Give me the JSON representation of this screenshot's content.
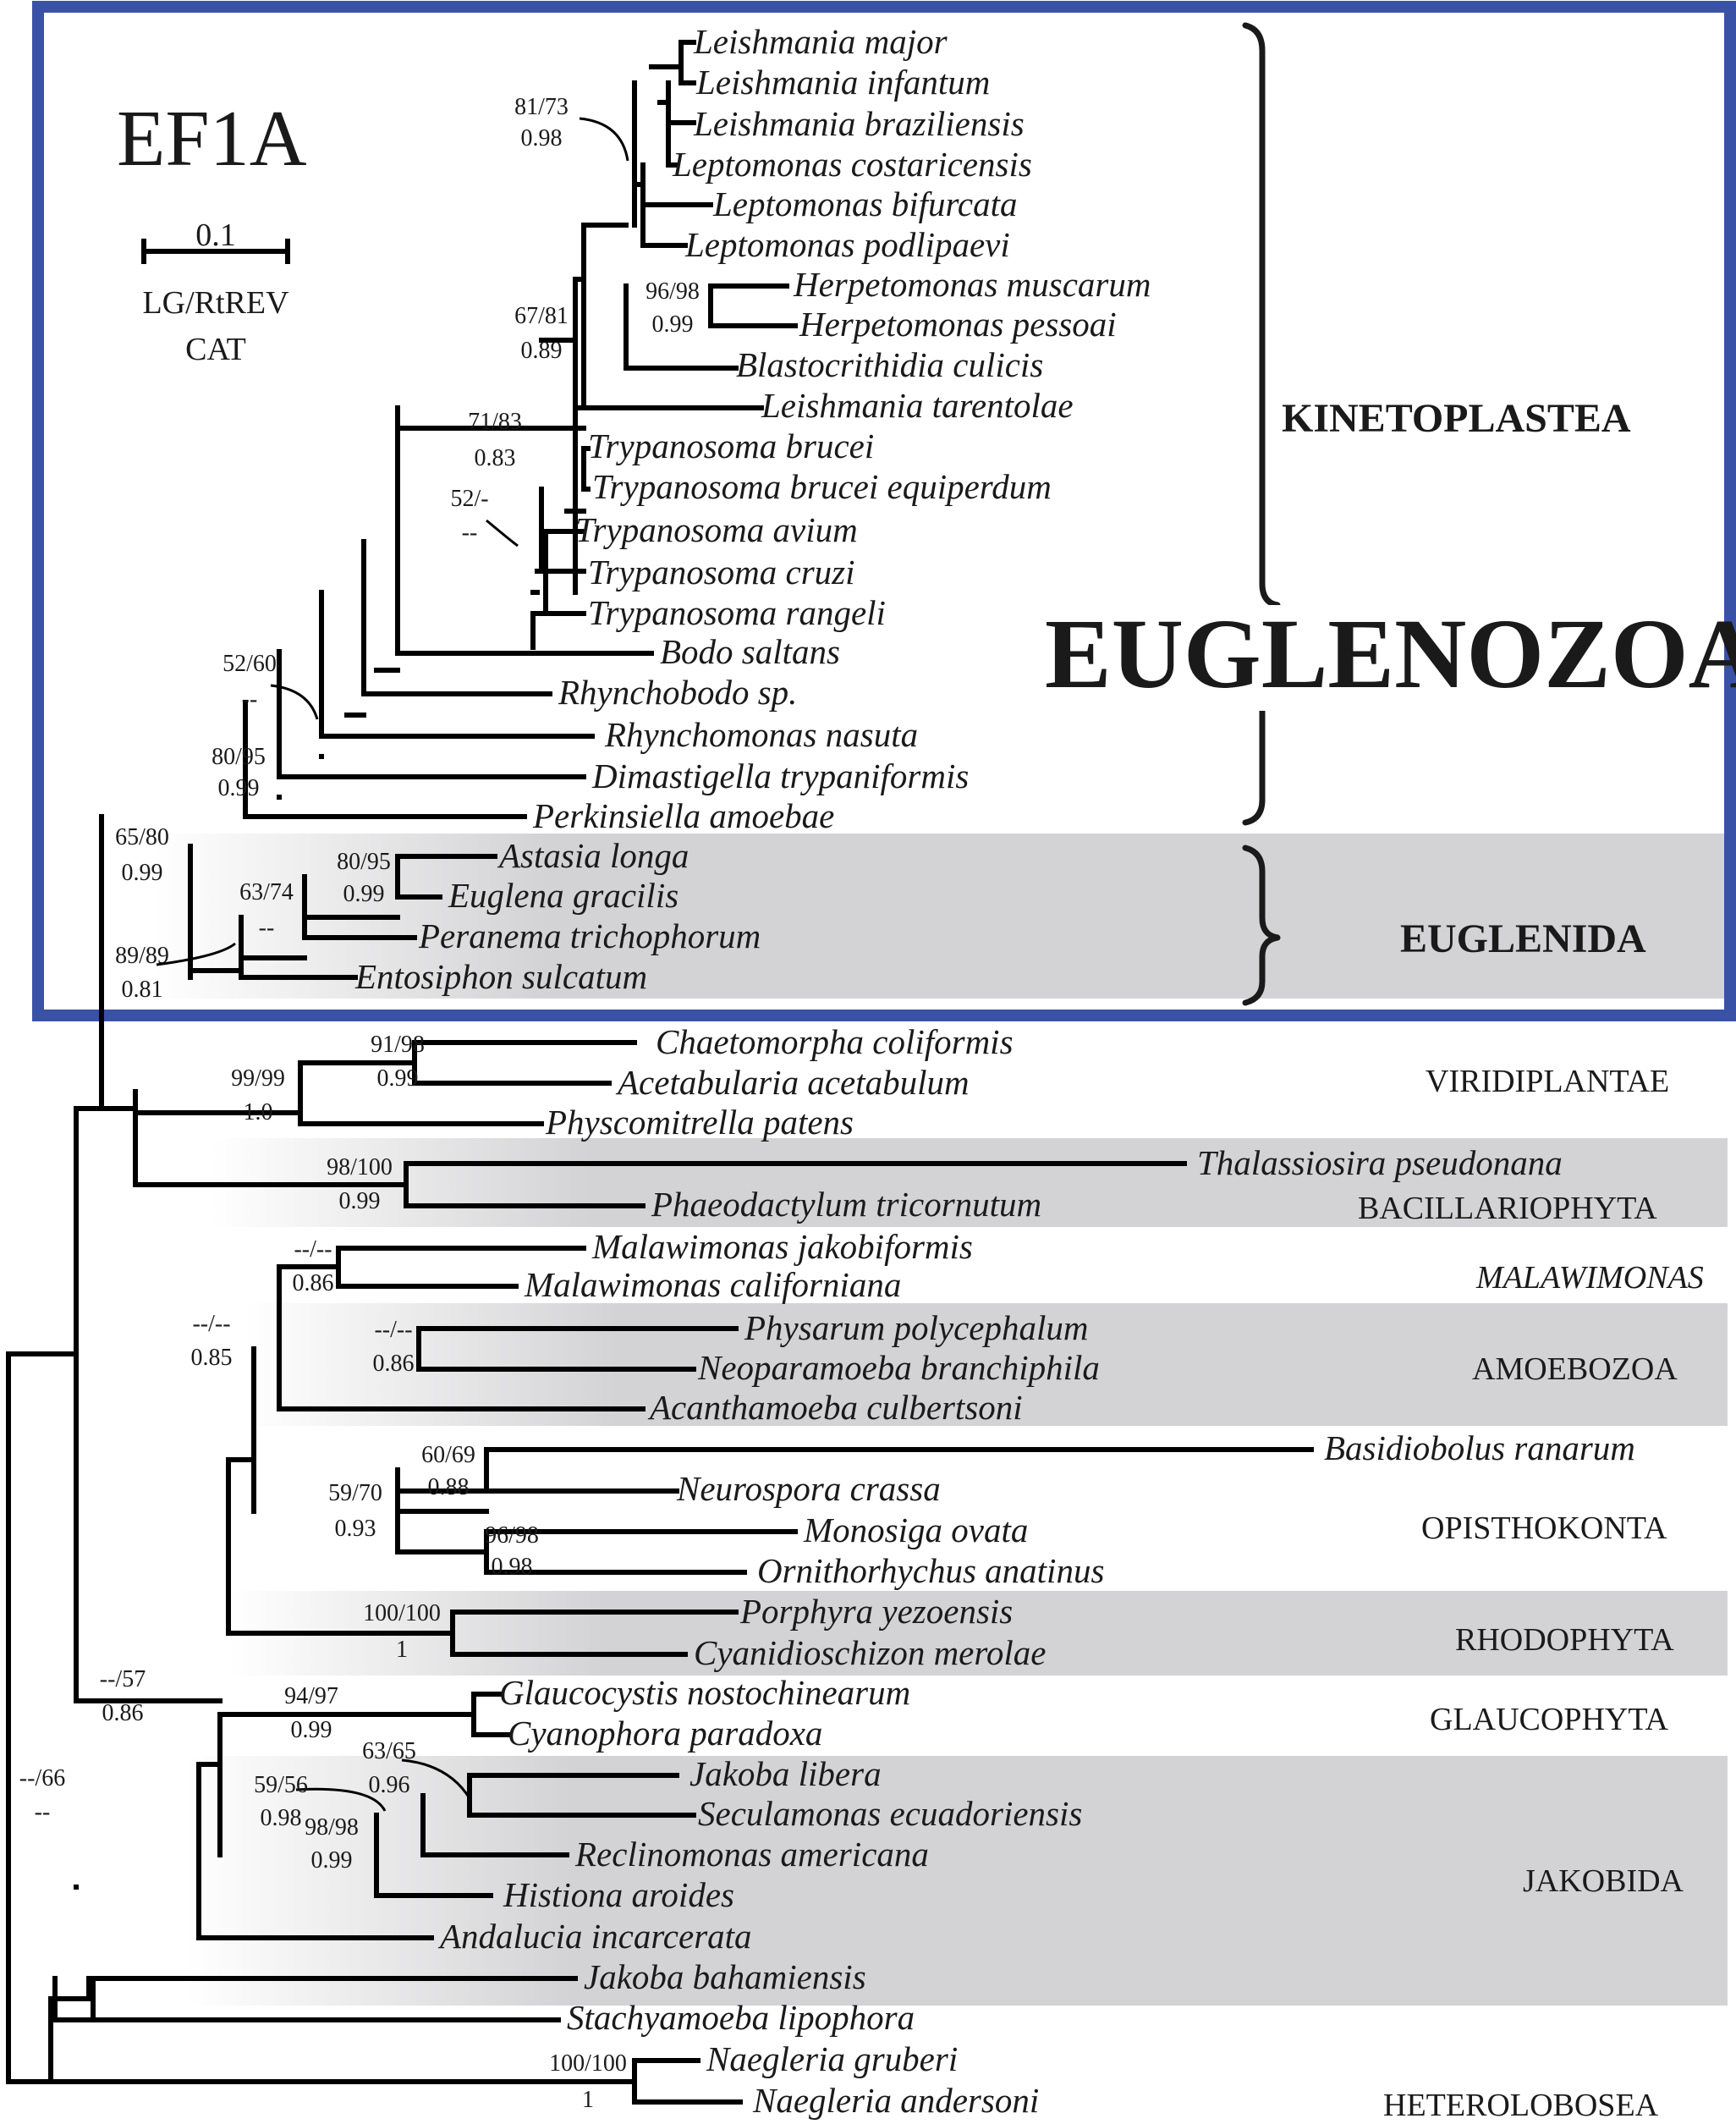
{
  "title": "EF1A",
  "scale": {
    "value": "0.1",
    "model": "LG/RtREV",
    "model2": "CAT"
  },
  "taxa": [
    "Leishmania major",
    "Leishmania infantum",
    "Leishmania braziliensis",
    "Leptomonas costaricensis",
    "Leptomonas bifurcata",
    "Leptomonas podlipaevi",
    "Herpetomonas muscarum",
    "Herpetomonas pessoai",
    "Blastocrithidia culicis",
    "Leishmania tarentolae",
    "Trypanosoma brucei",
    "Trypanosoma brucei equiperdum",
    "Trypanosoma avium",
    "Trypanosoma cruzi",
    "Trypanosoma rangeli",
    "Bodo saltans",
    "Rhynchobodo sp.",
    "Rhynchomonas nasuta",
    "Dimastigella trypaniformis",
    "Perkinsiella amoebae",
    "Astasia longa",
    "Euglena gracilis",
    "Peranema trichophorum",
    "Entosiphon sulcatum",
    "Chaetomorpha coliformis",
    "Acetabularia acetabulum",
    "Physcomitrella patens",
    "Thalassiosira pseudonana",
    "Phaeodactylum tricornutum",
    "Malawimonas jakobiformis",
    "Malawimonas californiana",
    "Physarum polycephalum",
    "Neoparamoeba branchiphila",
    "Acanthamoeba culbertsoni",
    "Basidiobolus ranarum",
    "Neurospora crassa",
    "Monosiga ovata",
    "Ornithorhychus anatinus",
    "Porphyra yezoensis",
    "Cyanidioschizon merolae",
    "Glaucocystis nostochinearum",
    "Cyanophora paradoxa",
    "Jakoba libera",
    "Seculamonas ecuadoriensis",
    "Reclinomonas americana",
    "Histiona aroides",
    "Andalucia incarcerata",
    "Jakoba bahamiensis",
    "Stachyamoeba lipophora",
    "Naegleria gruberi",
    "Naegleria andersoni"
  ],
  "groups": {
    "kinetoplastea": "KINETOPLASTEA",
    "euglenozoa": "EUGLENOZOA",
    "euglenida": "EUGLENIDA",
    "viridiplantae": "VIRIDIPLANTAE",
    "bacillariophyta": "BACILLARIOPHYTA",
    "malawimonas": "MALAWIMONAS",
    "amoebozoa": "AMOEBOZOA",
    "opisthokonta": "OPISTHOKONTA",
    "rhodophyta": "RHODOPHYTA",
    "glaucophyta": "GLAUCOPHYTA",
    "jakobida": "JAKOBIDA",
    "heterolobosea": "HETEROLOBOSEA"
  },
  "supports": [
    "81/73",
    "0.98",
    "96/98",
    "0.99",
    "67/81",
    "0.89",
    "71/83",
    "0.83",
    "52/-",
    "--",
    "52/60",
    "--",
    "80/95",
    "0.99",
    "65/80",
    "0.99",
    "80/95",
    "0.99",
    "63/74",
    "--",
    "89/89",
    "0.81",
    "91/98",
    "0.99",
    "99/99",
    "1.0",
    "98/100",
    "0.99",
    "--/--",
    "0.86",
    "--/--",
    "0.86",
    "60/69",
    "0.88",
    "59/70",
    "0.93",
    "96/98",
    "0.98",
    "--/--",
    "0.85",
    "100/100",
    "1",
    "--/57",
    "0.86",
    "94/97",
    "0.99",
    "63/65",
    "0.96",
    "59/56",
    "0.98",
    "98/98",
    "0.99",
    "--/66",
    "--",
    "100/100",
    "1"
  ],
  "colors": {
    "frame": "#3a52a6",
    "shade": "#d3d3d5",
    "line": "#000000"
  }
}
